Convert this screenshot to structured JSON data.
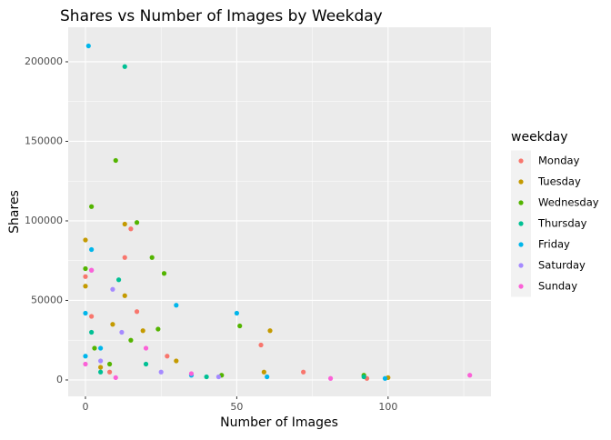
{
  "chart_data": {
    "type": "scatter",
    "title": "Shares vs Number of Images by Weekday",
    "x_label": "Number of Images",
    "y_label": "Shares",
    "legend_title": "weekday",
    "legend_position": "right",
    "grid": true,
    "xlim": [
      -5.7,
      134
    ],
    "ylim": [
      -10300,
      221700
    ],
    "xticks": [
      0,
      50,
      100
    ],
    "yticks": [
      0,
      50000,
      100000,
      150000,
      200000
    ],
    "series": [
      {
        "name": "Monday",
        "color": "#F8766D",
        "x": [
          13,
          15,
          0,
          58,
          17,
          2,
          27,
          72,
          93,
          8
        ],
        "values": [
          77000,
          95000,
          65000,
          22000,
          43000,
          40000,
          15000,
          5000,
          1000,
          5000
        ]
      },
      {
        "name": "Tuesday",
        "color": "#C49A00",
        "x": [
          0,
          13,
          13,
          61,
          0,
          19,
          9,
          30,
          59,
          100,
          5
        ],
        "values": [
          88000,
          98000,
          53000,
          31000,
          59000,
          31000,
          35000,
          12000,
          5000,
          1500,
          8000
        ]
      },
      {
        "name": "Wednesday",
        "color": "#53B400",
        "x": [
          10,
          2,
          17,
          22,
          26,
          0,
          51,
          24,
          15,
          3,
          8,
          92,
          45
        ],
        "values": [
          138000,
          109000,
          99000,
          77000,
          67000,
          70000,
          34000,
          32000,
          25000,
          20000,
          10000,
          3000,
          3000
        ]
      },
      {
        "name": "Thursday",
        "color": "#00C094",
        "x": [
          13,
          11,
          2,
          20,
          40,
          92,
          5
        ],
        "values": [
          197000,
          63000,
          30000,
          10000,
          2000,
          2000,
          5000
        ]
      },
      {
        "name": "Friday",
        "color": "#00B6EB",
        "x": [
          1,
          2,
          30,
          50,
          0,
          99,
          5,
          0,
          35,
          60
        ],
        "values": [
          210000,
          82000,
          47000,
          42000,
          42000,
          1000,
          20000,
          15000,
          3000,
          2000
        ]
      },
      {
        "name": "Saturday",
        "color": "#A58AFF",
        "x": [
          9,
          2,
          12,
          5,
          44,
          25
        ],
        "values": [
          57000,
          69000,
          30000,
          12000,
          2000,
          5000
        ]
      },
      {
        "name": "Sunday",
        "color": "#FB61D7",
        "x": [
          2,
          127,
          81,
          20,
          0,
          35,
          10
        ],
        "values": [
          69000,
          3000,
          1000,
          20000,
          10000,
          4000,
          1500
        ]
      }
    ]
  }
}
